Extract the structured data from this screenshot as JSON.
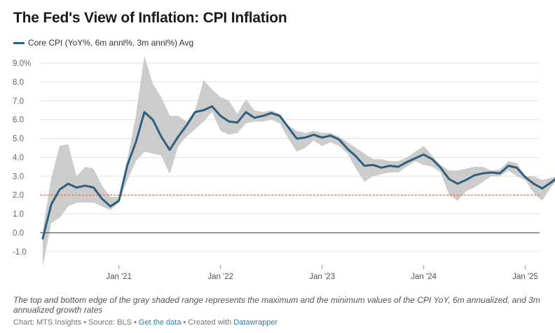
{
  "title": "The Fed's View of Inflation: CPI Inflation",
  "legend": {
    "label": "Core CPI (YoY%, 6m annl%, 3m annl%) Avg"
  },
  "note": "The top and bottom edge of the gray shaded range represents the maximum and the minimum values of the CPI YoY, 6m annualized, and 3m annualized growth rates",
  "footer": {
    "chart": "Chart: MTS Insights",
    "sep1": " • ",
    "source": "Source: BLS",
    "sep2": " • ",
    "get_data": "Get the data",
    "sep3": " • ",
    "created": "Created with ",
    "tool": "Datawrapper"
  },
  "colors": {
    "line": "#2e5f7e",
    "band": "#cccccc",
    "reference": "#d9623b",
    "zero": "#333333",
    "grid": "#e2e2e2"
  },
  "chart_data": {
    "type": "line",
    "ylim": [
      -1.8,
      9.5
    ],
    "y_ticks": [
      -1.0,
      0.0,
      1.0,
      2.0,
      3.0,
      4.0,
      5.0,
      6.0,
      7.0,
      8.0,
      9.0
    ],
    "y_tick_labels": [
      "-1.0",
      "0.0",
      "1.0",
      "2.0",
      "3.0",
      "4.0",
      "5.0",
      "6.0",
      "7.0",
      "8.0",
      "9.0%"
    ],
    "x_ticks": [
      "2021-01",
      "2022-01",
      "2023-01",
      "2024-01",
      "2025-01"
    ],
    "x_tick_labels": [
      "Jan '21",
      "Jan '22",
      "Jan '23",
      "Jan '24",
      "Jan '25"
    ],
    "reference_line": 2.0,
    "x": [
      "2020-04",
      "2020-05",
      "2020-06",
      "2020-07",
      "2020-08",
      "2020-09",
      "2020-10",
      "2020-11",
      "2020-12",
      "2021-01",
      "2021-02",
      "2021-03",
      "2021-04",
      "2021-05",
      "2021-06",
      "2021-07",
      "2021-08",
      "2021-09",
      "2021-10",
      "2021-11",
      "2021-12",
      "2022-01",
      "2022-02",
      "2022-03",
      "2022-04",
      "2022-05",
      "2022-06",
      "2022-07",
      "2022-08",
      "2022-09",
      "2022-10",
      "2022-11",
      "2022-12",
      "2023-01",
      "2023-02",
      "2023-03",
      "2023-04",
      "2023-05",
      "2023-06",
      "2023-07",
      "2023-08",
      "2023-09",
      "2023-10",
      "2023-11",
      "2023-12",
      "2024-01",
      "2024-02",
      "2024-03",
      "2024-04",
      "2024-05",
      "2024-06",
      "2024-07",
      "2024-08",
      "2024-09",
      "2024-10",
      "2024-11",
      "2024-12",
      "2025-01",
      "2025-02",
      "2025-03",
      "2025-04",
      "2025-05"
    ],
    "series": [
      {
        "name": "Core CPI (YoY%, 6m annl%, 3m annl%) Avg",
        "values": [
          -0.3,
          1.5,
          2.3,
          2.6,
          2.4,
          2.5,
          2.4,
          1.8,
          1.4,
          1.7,
          3.6,
          4.8,
          6.4,
          6.0,
          5.1,
          4.4,
          5.1,
          5.7,
          6.4,
          6.5,
          6.7,
          6.2,
          5.9,
          5.85,
          6.4,
          6.1,
          6.2,
          6.35,
          6.2,
          5.6,
          5.0,
          5.05,
          5.2,
          5.05,
          5.15,
          4.95,
          4.45,
          4.05,
          3.55,
          3.6,
          3.45,
          3.55,
          3.5,
          3.75,
          3.95,
          4.15,
          3.9,
          3.45,
          2.85,
          2.6,
          2.8,
          3.05,
          3.15,
          3.2,
          3.15,
          3.55,
          3.45,
          2.95,
          2.6,
          2.35,
          2.65,
          3.0
        ]
      }
    ],
    "band": {
      "upper": [
        0.1,
        2.9,
        4.6,
        4.7,
        3.0,
        3.5,
        3.4,
        2.5,
        1.9,
        1.9,
        3.9,
        6.2,
        9.4,
        7.9,
        7.2,
        6.2,
        6.2,
        5.9,
        6.5,
        8.1,
        7.6,
        7.2,
        7.0,
        6.3,
        7.1,
        6.5,
        6.4,
        6.5,
        6.3,
        5.7,
        5.4,
        5.3,
        5.4,
        5.3,
        5.3,
        5.1,
        4.8,
        4.5,
        4.2,
        3.9,
        3.9,
        3.8,
        3.8,
        4.0,
        4.3,
        4.6,
        4.1,
        3.6,
        3.3,
        3.3,
        3.4,
        3.5,
        3.5,
        3.3,
        3.35,
        3.8,
        3.7,
        3.0,
        3.0,
        2.8,
        2.9,
        3.05
      ],
      "lower": [
        -1.8,
        0.5,
        0.8,
        1.4,
        1.6,
        1.6,
        1.6,
        1.4,
        1.2,
        1.6,
        2.8,
        3.8,
        4.3,
        4.2,
        4.1,
        3.1,
        4.6,
        5.1,
        5.5,
        5.9,
        6.4,
        5.4,
        5.2,
        5.3,
        5.8,
        5.9,
        5.9,
        6.0,
        5.8,
        5.0,
        4.3,
        4.5,
        4.9,
        4.6,
        4.8,
        4.6,
        4.2,
        3.4,
        2.7,
        3.0,
        3.1,
        3.2,
        3.2,
        3.5,
        3.8,
        3.6,
        3.5,
        3.2,
        2.0,
        1.7,
        2.2,
        2.4,
        2.7,
        3.0,
        3.0,
        3.3,
        3.0,
        2.8,
        2.1,
        1.7,
        2.4,
        2.9
      ]
    }
  }
}
